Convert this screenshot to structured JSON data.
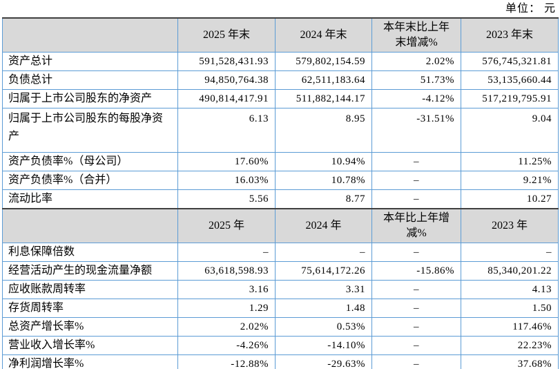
{
  "unit_label": "单位： 元",
  "colors": {
    "grid_border": "#5b9bd5",
    "frame_rule": "#3f3f3f",
    "header_bg": "#d9d9d9",
    "text": "#000000"
  },
  "sections": [
    {
      "headers": [
        "",
        "2025 年末",
        "2024 年末",
        "本年末比上年末增减%",
        "2023 年末"
      ],
      "rows": [
        {
          "label": "资产总计",
          "values": [
            "591,528,431.93",
            "579,802,154.59",
            "2.02%",
            "576,745,321.81"
          ]
        },
        {
          "label": "负债总计",
          "values": [
            "94,850,764.38",
            "62,511,183.64",
            "51.73%",
            "53,135,660.44"
          ]
        },
        {
          "label": "归属于上市公司股东的净资产",
          "values": [
            "490,814,417.91",
            "511,882,144.17",
            "-4.12%",
            "517,219,795.91"
          ]
        },
        {
          "label": "归属于上市公司股东的每股净资产",
          "values": [
            "6.13",
            "8.95",
            "-31.51%",
            "9.04"
          ],
          "tall": true
        },
        {
          "label": "资产负债率%（母公司）",
          "values": [
            "17.60%",
            "10.94%",
            "–",
            "11.25%"
          ]
        },
        {
          "label": "资产负债率%（合并）",
          "values": [
            "16.03%",
            "10.78%",
            "–",
            "9.21%"
          ]
        },
        {
          "label": "流动比率",
          "values": [
            "5.56",
            "8.77",
            "–",
            "10.27"
          ]
        }
      ]
    },
    {
      "headers": [
        "",
        "2025 年",
        "2024 年",
        "本年比上年增减%",
        "2023 年"
      ],
      "rows": [
        {
          "label": "利息保障倍数",
          "values": [
            "–",
            "–",
            "–",
            "–"
          ]
        },
        {
          "label": "经营活动产生的现金流量净额",
          "values": [
            "63,618,598.93",
            "75,614,172.26",
            "-15.86%",
            "85,340,201.22"
          ]
        },
        {
          "label": "应收账款周转率",
          "values": [
            "3.16",
            "3.31",
            "–",
            "4.13"
          ]
        },
        {
          "label": "存货周转率",
          "values": [
            "1.29",
            "1.48",
            "–",
            "1.50"
          ]
        },
        {
          "label": "总资产增长率%",
          "values": [
            "2.02%",
            "0.53%",
            "–",
            "117.46%"
          ]
        },
        {
          "label": "营业收入增长率%",
          "values": [
            "-4.26%",
            "-14.10%",
            "–",
            "22.23%"
          ]
        },
        {
          "label": "净利润增长率%",
          "values": [
            "-12.88%",
            "-29.63%",
            "–",
            "37.68%"
          ]
        }
      ]
    }
  ]
}
